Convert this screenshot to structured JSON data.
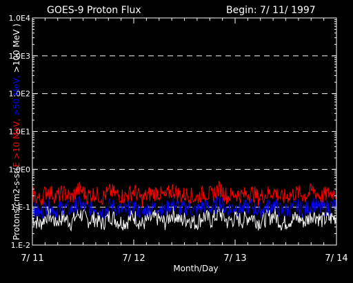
{
  "chart_data": {
    "type": "line",
    "title": "GOES-9 Proton Flux",
    "subtitle": "Begin: 7/ 11/ 1997",
    "xlabel": "Month/Day",
    "ylabel_parts": [
      {
        "text": "Protons/cm2-s-sr(",
        "color": "#ffffff"
      },
      {
        "text": "E >10 MeV,",
        "color": "#ff0000"
      },
      {
        "text": " >50 MeV,",
        "color": "#0000ff"
      },
      {
        "text": " >100 MeV )",
        "color": "#ffffff"
      }
    ],
    "y_scale": "log",
    "ylim": [
      0.01,
      10000
    ],
    "y_ticks": [
      {
        "value": 0.01,
        "label": "1.E-2"
      },
      {
        "value": 0.1,
        "label": "1.E-1"
      },
      {
        "value": 1,
        "label": "1.0E0"
      },
      {
        "value": 10,
        "label": "1.0E1"
      },
      {
        "value": 100,
        "label": "1.0E2"
      },
      {
        "value": 1000,
        "label": "1.0E3"
      },
      {
        "value": 10000,
        "label": "1.0E4"
      }
    ],
    "xlim": [
      "7/11",
      "7/14"
    ],
    "x_ticks": [
      {
        "value": 0,
        "label": "7/ 11"
      },
      {
        "value": 1,
        "label": "7/ 12"
      },
      {
        "value": 2,
        "label": "7/ 13"
      },
      {
        "value": 3,
        "label": "7/ 14"
      }
    ],
    "grid": "dashed horizontal",
    "series": [
      {
        "name": ">10 MeV",
        "color": "#ff0000",
        "values": [
          0.22,
          0.15,
          0.28,
          0.19,
          0.24,
          0.17,
          0.3,
          0.2,
          0.23,
          0.18,
          0.26,
          0.21,
          0.19,
          0.27,
          0.16,
          0.22,
          0.25,
          0.18,
          0.29,
          0.2,
          0.22,
          0.17,
          0.24,
          0.21,
          0.31,
          0.19,
          0.23,
          0.2,
          0.25,
          0.18,
          0.22,
          0.26,
          0.17,
          0.21,
          0.24,
          0.2,
          0.28,
          0.19,
          0.23,
          0.25
        ]
      },
      {
        "name": ">50 MeV",
        "color": "#0000ff",
        "values": [
          0.09,
          0.07,
          0.11,
          0.08,
          0.1,
          0.085,
          0.12,
          0.09,
          0.1,
          0.075,
          0.11,
          0.09,
          0.08,
          0.105,
          0.07,
          0.095,
          0.1,
          0.08,
          0.12,
          0.09,
          0.1,
          0.075,
          0.11,
          0.09,
          0.13,
          0.085,
          0.1,
          0.09,
          0.11,
          0.08,
          0.1,
          0.115,
          0.075,
          0.09,
          0.1,
          0.085,
          0.12,
          0.09,
          0.1,
          0.11
        ]
      },
      {
        "name": ">100 MeV",
        "color": "#ffffff",
        "values": [
          0.05,
          0.035,
          0.065,
          0.04,
          0.055,
          0.038,
          0.07,
          0.045,
          0.05,
          0.036,
          0.06,
          0.042,
          0.04,
          0.058,
          0.034,
          0.048,
          0.052,
          0.039,
          0.068,
          0.044,
          0.05,
          0.037,
          0.058,
          0.043,
          0.072,
          0.041,
          0.05,
          0.044,
          0.06,
          0.04,
          0.05,
          0.062,
          0.036,
          0.045,
          0.052,
          0.041,
          0.066,
          0.045,
          0.05,
          0.055
        ]
      }
    ]
  }
}
